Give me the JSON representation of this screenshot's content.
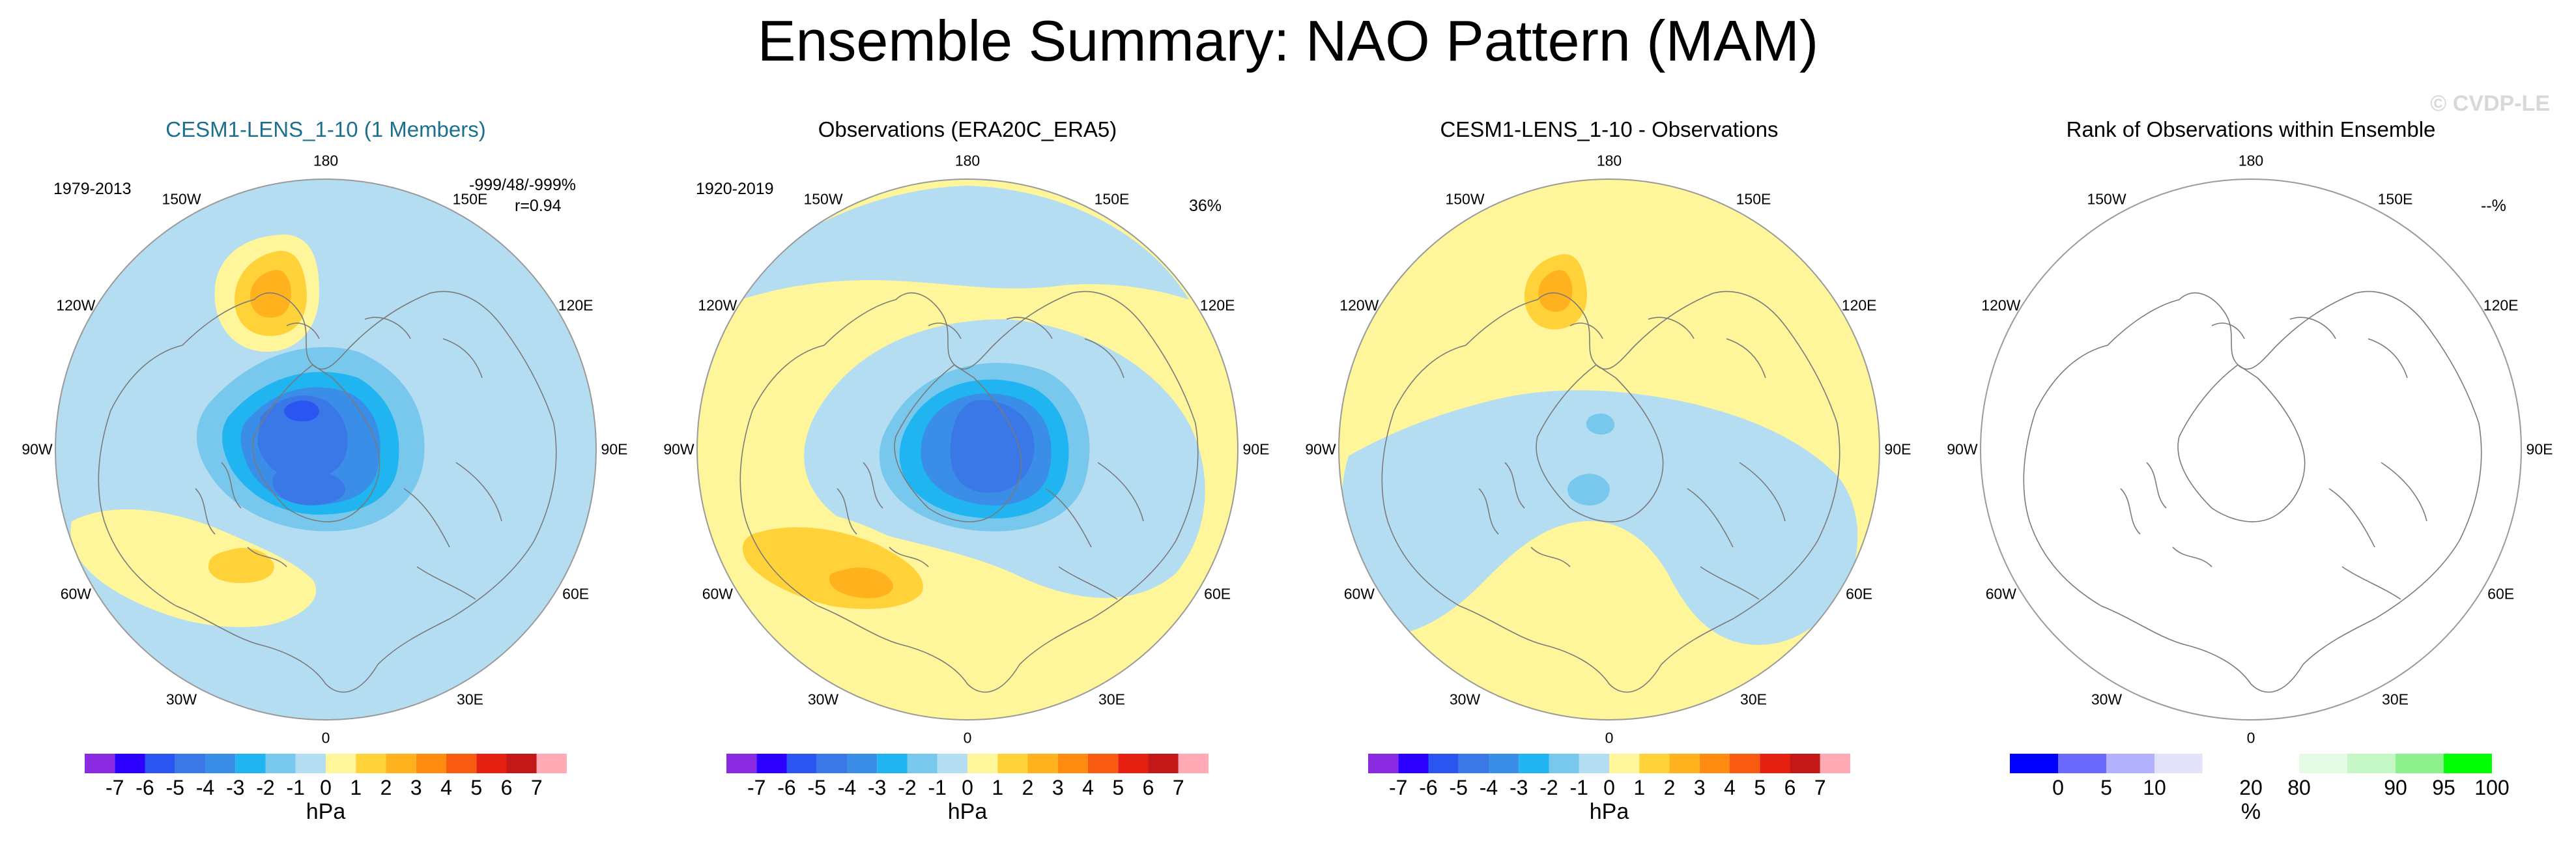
{
  "figure": {
    "title": "Ensemble Summary: NAO Pattern (MAM)",
    "copyright": "© CVDP-LE"
  },
  "colors": {
    "title_blue": "#1c6f8f",
    "land_outline": "#7a7a7a"
  },
  "longitude_labels": [
    "180",
    "150E",
    "120E",
    "90E",
    "60E",
    "30E",
    "0",
    "30W",
    "60W",
    "90W",
    "120W",
    "150W"
  ],
  "chart_data": [
    {
      "type": "heatmap",
      "title": "CESM1-LENS_1-10 (1 Members)",
      "title_color": "#1c6f8f",
      "top_left": "1979-2013",
      "top_right_lines": [
        "-999/48/-999%",
        "r=0.94"
      ],
      "projection": "north polar stereographic",
      "units": "hPa",
      "pattern": "model",
      "colorbar": {
        "ticks": [
          "-7",
          "-6",
          "-5",
          "-4",
          "-3",
          "-2",
          "-1",
          "0",
          "1",
          "2",
          "3",
          "4",
          "5",
          "6",
          "7"
        ],
        "colors": [
          "#8a2be2",
          "#2b00ff",
          "#2a55f0",
          "#3a78e8",
          "#3a8ee8",
          "#20b4f0",
          "#78c8ee",
          "#b4ddf2",
          "#fff59a",
          "#ffd23a",
          "#ffb21e",
          "#ff8c10",
          "#f85a10",
          "#e62010",
          "#c41818",
          "#ffaab4"
        ],
        "unit": "hPa"
      }
    },
    {
      "type": "heatmap",
      "title": "Observations (ERA20C_ERA5)",
      "top_left": "1920-2019",
      "top_right_lines": [
        "36%"
      ],
      "projection": "north polar stereographic",
      "units": "hPa",
      "pattern": "obs",
      "colorbar": {
        "ticks": [
          "-7",
          "-6",
          "-5",
          "-4",
          "-3",
          "-2",
          "-1",
          "0",
          "1",
          "2",
          "3",
          "4",
          "5",
          "6",
          "7"
        ],
        "colors": [
          "#8a2be2",
          "#2b00ff",
          "#2a55f0",
          "#3a78e8",
          "#3a8ee8",
          "#20b4f0",
          "#78c8ee",
          "#b4ddf2",
          "#fff59a",
          "#ffd23a",
          "#ffb21e",
          "#ff8c10",
          "#f85a10",
          "#e62010",
          "#c41818",
          "#ffaab4"
        ],
        "unit": "hPa"
      }
    },
    {
      "type": "heatmap",
      "title": "CESM1-LENS_1-10 - Observations",
      "projection": "north polar stereographic",
      "units": "hPa",
      "pattern": "diff",
      "colorbar": {
        "ticks": [
          "-7",
          "-6",
          "-5",
          "-4",
          "-3",
          "-2",
          "-1",
          "0",
          "1",
          "2",
          "3",
          "4",
          "5",
          "6",
          "7"
        ],
        "colors": [
          "#8a2be2",
          "#2b00ff",
          "#2a55f0",
          "#3a78e8",
          "#3a8ee8",
          "#20b4f0",
          "#78c8ee",
          "#b4ddf2",
          "#fff59a",
          "#ffd23a",
          "#ffb21e",
          "#ff8c10",
          "#f85a10",
          "#e62010",
          "#c41818",
          "#ffaab4"
        ],
        "unit": "hPa"
      }
    },
    {
      "type": "heatmap",
      "title": "Rank of Observations within Ensemble",
      "top_right_lines": [
        "--%"
      ],
      "projection": "north polar stereographic",
      "units": "%",
      "pattern": "blank",
      "colorbar": {
        "ticks": [
          "0",
          "5",
          "10",
          "20",
          "80",
          "90",
          "95",
          "100"
        ],
        "tick_bounds": [
          1,
          2,
          3,
          5,
          6,
          8,
          9,
          10
        ],
        "colors": [
          "#0000ff",
          "#6a6aff",
          "#b2b2ff",
          "#e2e2fa",
          "#ffffff",
          "#ffffff",
          "#e6fbe6",
          "#c6f7c6",
          "#8cf08c",
          "#00ff00"
        ],
        "unit": "%"
      }
    }
  ]
}
